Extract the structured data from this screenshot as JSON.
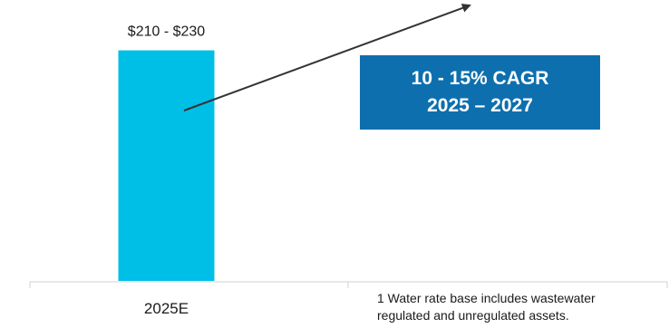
{
  "chart_data": {
    "type": "bar",
    "categories": [
      "2025E"
    ],
    "values": [
      220
    ],
    "value_label": "$210 - $230",
    "bar_color": "#00bfe6",
    "ylim": [
      0,
      230
    ],
    "trend_arrow": true
  },
  "callout": {
    "line1": "10 - 15% CAGR",
    "line2": "2025 – 2027",
    "color": "#0e6fae"
  },
  "footnote": {
    "line1": "1 Water rate base includes wastewater",
    "line2": "regulated and unregulated assets."
  }
}
